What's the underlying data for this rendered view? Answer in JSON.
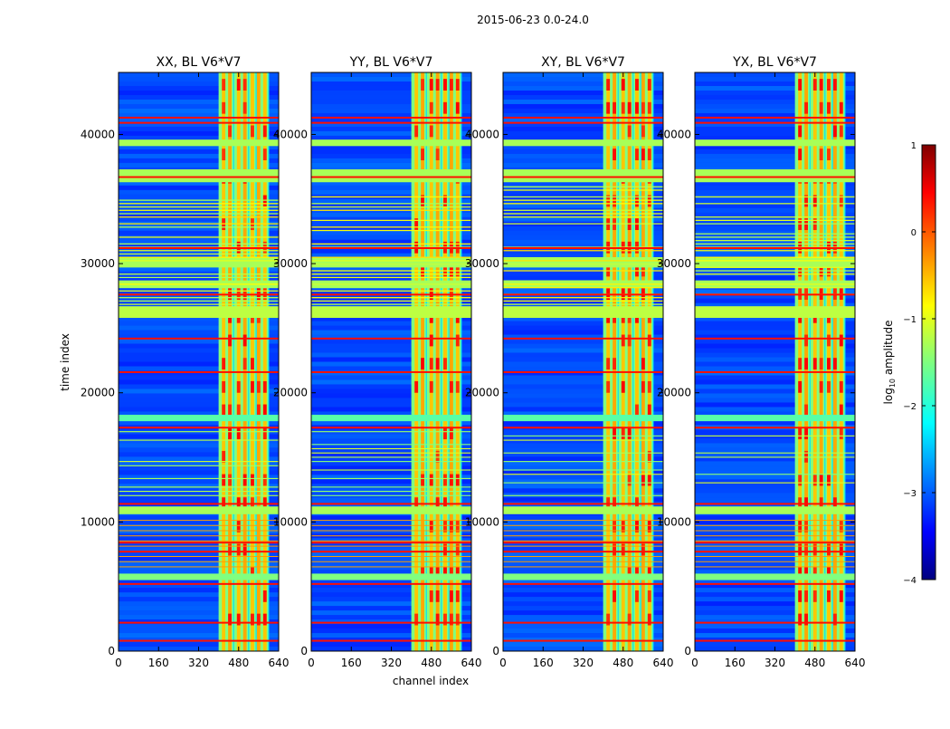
{
  "chart_data": {
    "type": "heatmap",
    "suptitle": "2015-06-23 0.0-24.0",
    "xlabel": "channel index",
    "ylabel": "time index",
    "xlim": [
      0,
      640
    ],
    "ylim": [
      0,
      44800
    ],
    "xticks": [
      0,
      160,
      320,
      480,
      640
    ],
    "yticks": [
      0,
      10000,
      20000,
      30000,
      40000
    ],
    "colormap": "jet",
    "colorbar": {
      "label_prefix": "log",
      "label_sub": "10",
      "label_suffix": " amplitude",
      "range": [
        -4,
        1
      ],
      "ticks": [
        1,
        0,
        -1,
        -2,
        -3,
        -4
      ],
      "tick_labels": [
        "1",
        "0",
        "−1",
        "−2",
        "−3",
        "−4"
      ]
    },
    "panels": [
      {
        "title": "XX, BL V6*V7"
      },
      {
        "title": "YY, BL V6*V7"
      },
      {
        "title": "XY, BL V6*V7"
      },
      {
        "title": "YX, BL V6*V7"
      }
    ],
    "rfi_band": {
      "channel_start": 400,
      "channel_end": 600
    },
    "bright_channel_columns": [
      420,
      445,
      480,
      505,
      535,
      560,
      585
    ],
    "flagged_time_bands": [
      {
        "start": 36300,
        "end": 37300,
        "level": -1.3
      },
      {
        "start": 39100,
        "end": 39600,
        "level": -1.3
      },
      {
        "start": 25800,
        "end": 26700,
        "level": -1.2
      },
      {
        "start": 29700,
        "end": 30500,
        "level": -1.3
      },
      {
        "start": 28100,
        "end": 28700,
        "level": -1.3
      },
      {
        "start": 17800,
        "end": 18300,
        "level": -1.7
      },
      {
        "start": 10600,
        "end": 11200,
        "level": -1.3
      },
      {
        "start": 5500,
        "end": 6000,
        "level": -1.5
      }
    ],
    "strong_lines": [
      40900,
      41300,
      36700,
      31200,
      27600,
      24200,
      21600,
      17300,
      11400,
      5200,
      8400,
      7700,
      2200,
      800
    ]
  }
}
